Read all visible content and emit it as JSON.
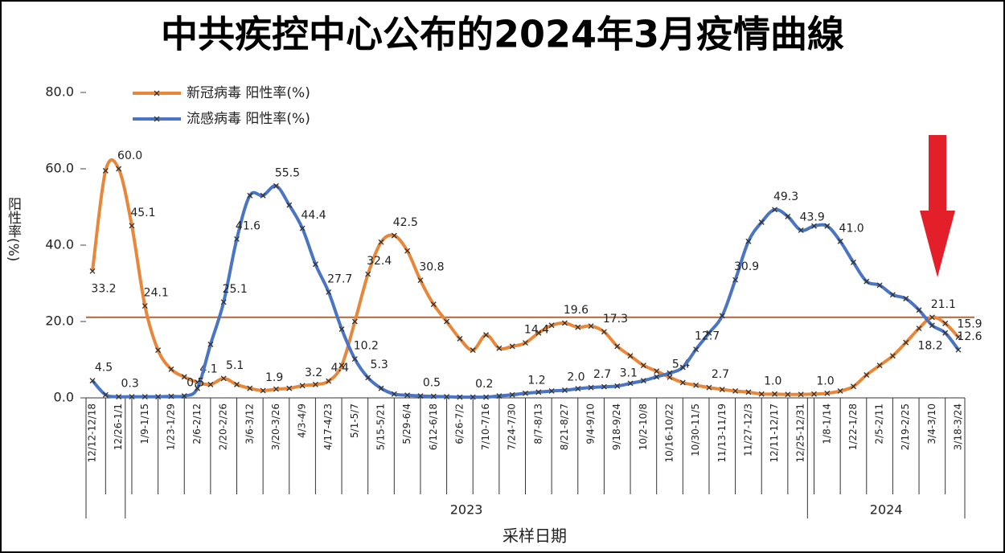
{
  "chart_data": {
    "type": "line",
    "title": "中共疾控中心公布的2024年3月疫情曲線",
    "ylabel": "阳性率(%)",
    "xlabel": "采样日期",
    "categories": [
      "12/12-12/18",
      null,
      "12/26-1/1",
      null,
      "1/9-1/15",
      null,
      "1/23-1/29",
      null,
      "2/6-2/12",
      null,
      "2/20-2/26",
      null,
      "3/6-3/12",
      null,
      "3/20-3/26",
      null,
      "4/3-4/9",
      null,
      "4/17-4/23",
      null,
      "5/1-5/7",
      null,
      "5/15-5/21",
      null,
      "5/29-6/4",
      null,
      "6/12-6/18",
      null,
      "6/26-7/2",
      null,
      "7/10-7/16",
      null,
      "7/24-7/30",
      null,
      "8/7-8/13",
      null,
      "8/21-8/27",
      null,
      "9/4-9/10",
      null,
      "9/18-9/24",
      null,
      "10/2-10/8",
      null,
      "10/16-10/22",
      null,
      "10/30-11/5",
      null,
      "11/13-11/19",
      null,
      "11/27-12/3",
      null,
      "12/11-12/17",
      null,
      "12/25-12/31",
      null,
      "1/8-1/14",
      null,
      "1/22-1/28",
      null,
      "2/5-2/11",
      null,
      "2/19-2/25",
      null,
      "3/4-3/10",
      null,
      "3/18-3/24"
    ],
    "groups": [
      {
        "label": "2023",
        "from": 3,
        "to": 54
      },
      {
        "label": "2024",
        "from": 55,
        "to": 66
      }
    ],
    "series": [
      {
        "name": "新冠病毒 阳性率(%)",
        "color": "#e8873a",
        "values": [
          33.2,
          59.5,
          60.0,
          45.1,
          24.1,
          12.5,
          7.5,
          5.5,
          4.1,
          3.5,
          5.1,
          3.5,
          2.5,
          1.9,
          2.3,
          2.5,
          3.2,
          3.5,
          4.4,
          8.5,
          20.0,
          32.4,
          40.8,
          42.5,
          38.5,
          30.8,
          24.5,
          20.0,
          15.5,
          12.5,
          16.5,
          13.0,
          13.5,
          14.4,
          17.0,
          19.0,
          19.6,
          18.5,
          18.8,
          17.3,
          13.5,
          11.0,
          8.5,
          7.0,
          5.4,
          4.0,
          3.3,
          2.7,
          2.2,
          1.8,
          1.5,
          1.0,
          1.0,
          0.9,
          0.9,
          1.0,
          1.2,
          1.8,
          3.0,
          6.0,
          8.5,
          11.0,
          14.5,
          18.2,
          21.1,
          19.5,
          15.9
        ],
        "value_labels": [
          "33.2",
          null,
          "60.0",
          "45.1",
          "24.1",
          null,
          null,
          null,
          "4.1",
          null,
          "5.1",
          null,
          null,
          "1.9",
          null,
          null,
          "3.2",
          null,
          "4.4",
          null,
          null,
          "32.4",
          null,
          "42.5",
          null,
          "30.8",
          null,
          null,
          null,
          null,
          null,
          null,
          null,
          "14.4",
          null,
          null,
          "19.6",
          null,
          null,
          "17.3",
          null,
          null,
          null,
          null,
          "5.4",
          null,
          null,
          "2.7",
          null,
          null,
          null,
          "1.0",
          null,
          null,
          null,
          "1.0",
          null,
          null,
          null,
          null,
          null,
          null,
          null,
          "18.2",
          "21.1",
          null,
          "15.9"
        ]
      },
      {
        "name": "流感病毒 阳性率(%)",
        "color": "#4a74c4",
        "values": [
          4.5,
          0.8,
          0.3,
          0.3,
          0.3,
          0.3,
          0.4,
          0.5,
          2.5,
          14.0,
          25.1,
          41.6,
          53.0,
          53.0,
          55.5,
          50.5,
          44.4,
          35.0,
          27.7,
          18.0,
          10.2,
          5.3,
          2.5,
          1.0,
          0.7,
          0.5,
          0.4,
          0.3,
          0.2,
          0.2,
          0.2,
          0.5,
          0.8,
          1.2,
          1.5,
          1.8,
          2.0,
          2.4,
          2.7,
          2.9,
          3.1,
          3.8,
          4.5,
          5.5,
          6.5,
          8.0,
          12.7,
          17.0,
          21.5,
          30.9,
          41.0,
          46.0,
          49.3,
          47.5,
          43.9,
          45.0,
          45.0,
          41.0,
          35.5,
          30.5,
          29.5,
          27.0,
          26.0,
          23.0,
          19.0,
          17.0,
          12.6
        ],
        "value_labels": [
          "4.5",
          null,
          "0.3",
          null,
          null,
          null,
          null,
          "0.5",
          null,
          null,
          "25.1",
          "41.6",
          null,
          null,
          "55.5",
          null,
          "44.4",
          null,
          "27.7",
          null,
          "10.2",
          "5.3",
          null,
          null,
          null,
          "0.5",
          null,
          null,
          null,
          "0.2",
          null,
          null,
          null,
          "1.2",
          null,
          null,
          "2.0",
          null,
          "2.7",
          null,
          "3.1",
          null,
          null,
          null,
          null,
          null,
          "12.7",
          null,
          null,
          "30.9",
          null,
          null,
          "49.3",
          null,
          "43.9",
          null,
          null,
          "41.0",
          null,
          null,
          null,
          null,
          null,
          null,
          null,
          null,
          "12.6"
        ]
      }
    ],
    "hline": {
      "value": 21.1,
      "color": "#b0663a"
    },
    "ylim": [
      0,
      80
    ],
    "yticks": [
      {
        "value": 0,
        "label": "0.0"
      },
      {
        "value": 20,
        "label": "20.0"
      },
      {
        "value": 40,
        "label": "40.0"
      },
      {
        "value": 60,
        "label": "60.0"
      },
      {
        "value": 80,
        "label": "80.0"
      }
    ],
    "grid": false
  }
}
